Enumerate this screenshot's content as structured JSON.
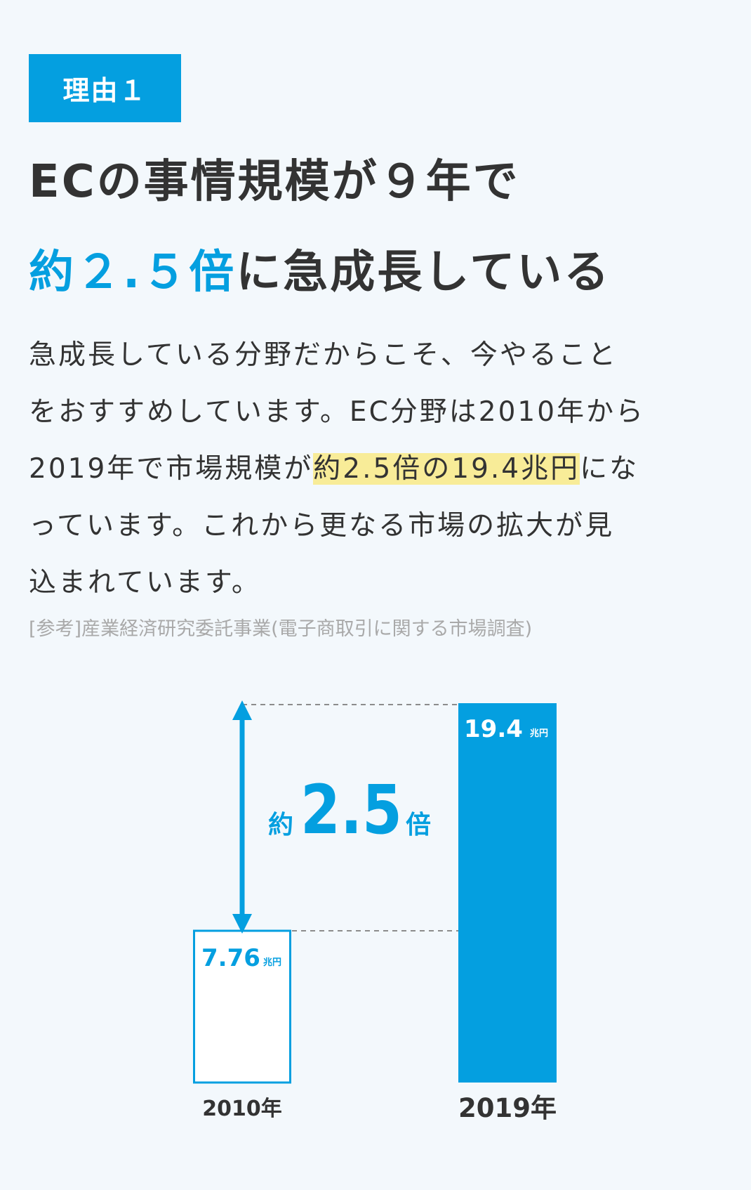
{
  "badge": {
    "label": "理由１"
  },
  "headline": {
    "line1": "ECの事情規模が９年で",
    "line2_accent": "約２.５倍",
    "line2_rest": "に急成長している"
  },
  "body": {
    "lines": [
      "急成長している分野だからこそ、今やること",
      "をおすすめしています。EC分野は2010年から",
      "2019年で市場規模が",
      "っています。これから更なる市場の拡大が見",
      "込まれています。"
    ],
    "highlight": "約2.5倍の19.4兆円",
    "line3_tail": "にな"
  },
  "reference": "[参考]産業経済研究委託事業(電子商取引に関する市場調査)",
  "colors": {
    "accent": "#049fe0",
    "highlight": "#f8ec98",
    "text": "#333333",
    "muted": "#a9a9a9"
  },
  "chart_data": {
    "type": "bar",
    "categories": [
      "2010年",
      "2019年"
    ],
    "values": [
      7.76,
      19.4
    ],
    "value_labels": [
      "7.76",
      "19.4"
    ],
    "unit": "兆円",
    "ratio_label": {
      "prefix": "約",
      "number": "2.5",
      "suffix": "倍"
    },
    "ylim": [
      0,
      19.4
    ]
  }
}
